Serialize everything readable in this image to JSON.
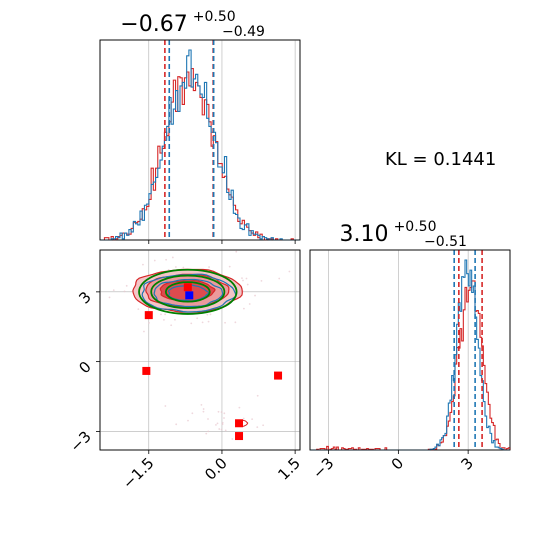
{
  "chart_data": {
    "type": "corner",
    "kl_label": "KL = 0.1441",
    "colors": {
      "blue": "#1f77b4",
      "red": "#d62728",
      "green": "#007f00",
      "grid": "#b0b0b0"
    },
    "parameters": [
      {
        "median": "−0.67",
        "plus": "+0.50",
        "minus": "−0.49",
        "range": [
          -2.5,
          1.6
        ],
        "ticks": [
          -1.5,
          0.0,
          1.5
        ],
        "tick_labels": [
          "−1.5",
          "0.0",
          "1.5"
        ]
      },
      {
        "median": "3.10",
        "plus": "+0.50",
        "minus": "−0.51",
        "range": [
          -3.8,
          4.8
        ],
        "ticks": [
          -3,
          0,
          3
        ],
        "tick_labels": [
          "−3",
          "0",
          "3"
        ]
      }
    ],
    "hist1": {
      "series": [
        {
          "name": "blue",
          "mu": -0.65,
          "sigma": 0.5,
          "quantiles": [
            -1.08,
            -0.65,
            -0.17
          ]
        },
        {
          "name": "red",
          "mu": -0.67,
          "sigma": 0.52,
          "quantiles": [
            -1.17,
            -0.67,
            -0.18
          ]
        }
      ]
    },
    "hist2": {
      "series": [
        {
          "name": "blue",
          "mu": 2.95,
          "sigma": 0.45,
          "quantiles": [
            2.4,
            2.95,
            3.3
          ]
        },
        {
          "name": "red",
          "mu": 3.1,
          "sigma": 0.5,
          "quantiles": [
            2.6,
            3.1,
            3.6
          ]
        }
      ]
    },
    "scatter_2d": {
      "red_square_points": [
        {
          "x": -1.5,
          "y": 2.0
        },
        {
          "x": -0.7,
          "y": 3.2
        },
        {
          "x": -1.55,
          "y": -0.4
        },
        {
          "x": 1.15,
          "y": -0.6
        },
        {
          "x": 0.35,
          "y": -2.65
        },
        {
          "x": 0.35,
          "y": -3.2
        }
      ],
      "blue_square_point": {
        "x": -0.67,
        "y": 2.85
      },
      "green_ellipses": [
        {
          "cx": -0.7,
          "cy": 3.0,
          "rx": 0.45,
          "ry": 0.42
        },
        {
          "cx": -0.7,
          "cy": 3.0,
          "rx": 0.75,
          "ry": 0.7
        },
        {
          "cx": -0.7,
          "cy": 3.0,
          "rx": 1.0,
          "ry": 0.95
        }
      ]
    }
  }
}
